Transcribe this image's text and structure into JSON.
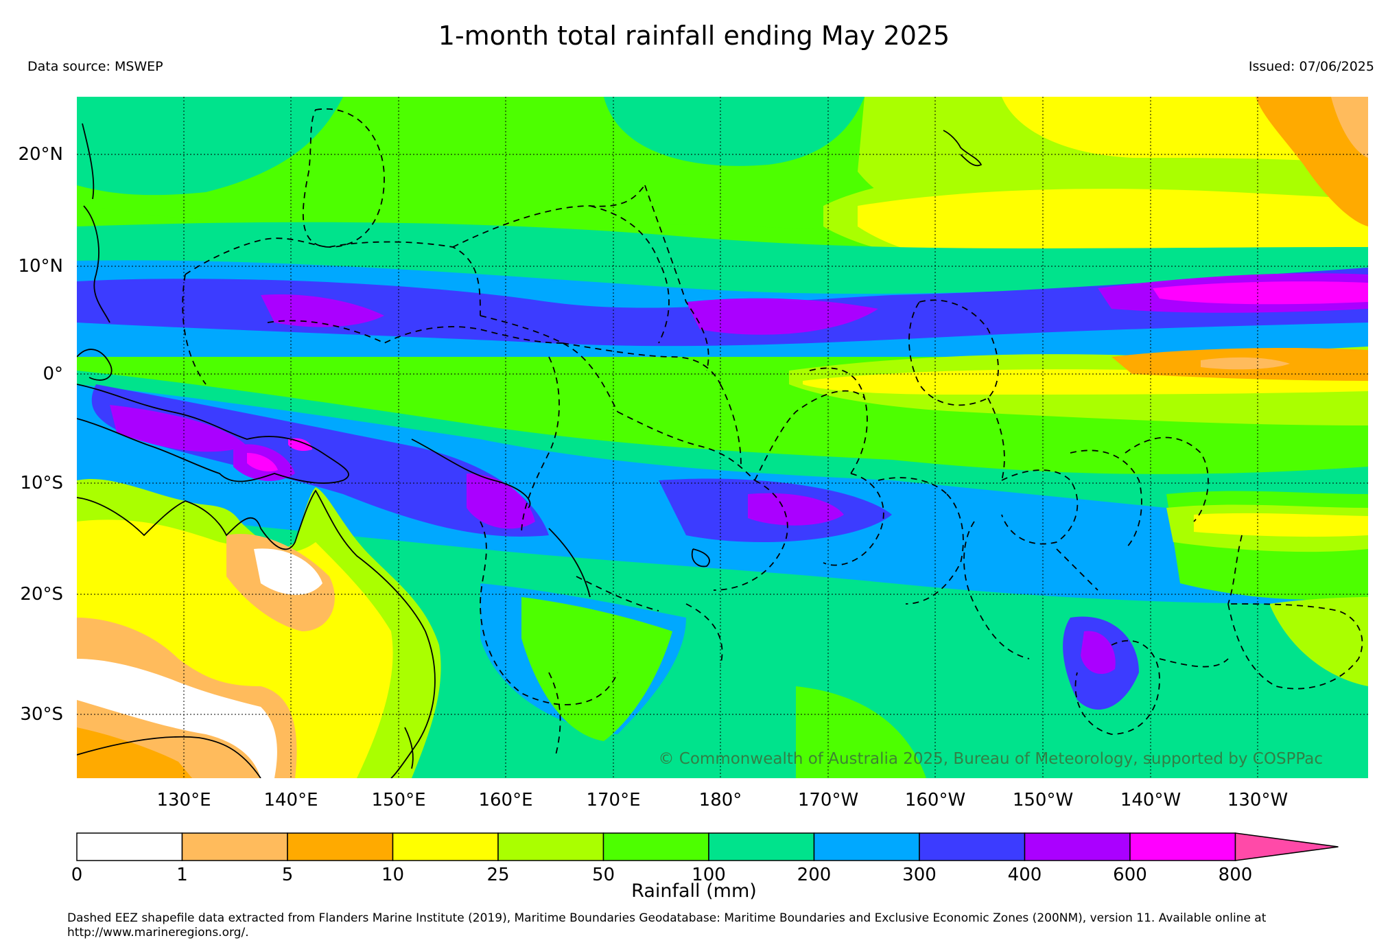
{
  "header": {
    "title": "1-month total rainfall ending May 2025",
    "source": "Data source: MSWEP",
    "issued": "Issued: 07/06/2025"
  },
  "map": {
    "lat_labels": [
      "20°N",
      "10°N",
      "0°",
      "10°S",
      "20°S",
      "30°S"
    ],
    "lon_labels": [
      "130°E",
      "140°E",
      "150°E",
      "160°E",
      "170°E",
      "180°",
      "170°W",
      "160°W",
      "150°W",
      "140°W",
      "130°W"
    ],
    "copyright": "© Commonwealth of Australia 2025, Bureau of Meteorology, supported by COSPPac"
  },
  "colorbar": {
    "title": "Rainfall (mm)",
    "ticks": [
      "0",
      "1",
      "5",
      "10",
      "25",
      "50",
      "100",
      "200",
      "300",
      "400",
      "600",
      "800"
    ],
    "colors": [
      "#ffffff",
      "#ffbb5c",
      "#ffaa00",
      "#ffff00",
      "#aaff00",
      "#4dff00",
      "#00e38c",
      "#00a8ff",
      "#3c3cff",
      "#aa00ff",
      "#ff00ff",
      "#ff4aa8"
    ]
  },
  "footnote": "Dashed EEZ shapefile data extracted from Flanders Marine Institute (2019), Maritime Boundaries Geodatabase: Maritime Boundaries and Exclusive Economic Zones (200NM), version 11. Available online at http://www.marineregions.org/."
}
